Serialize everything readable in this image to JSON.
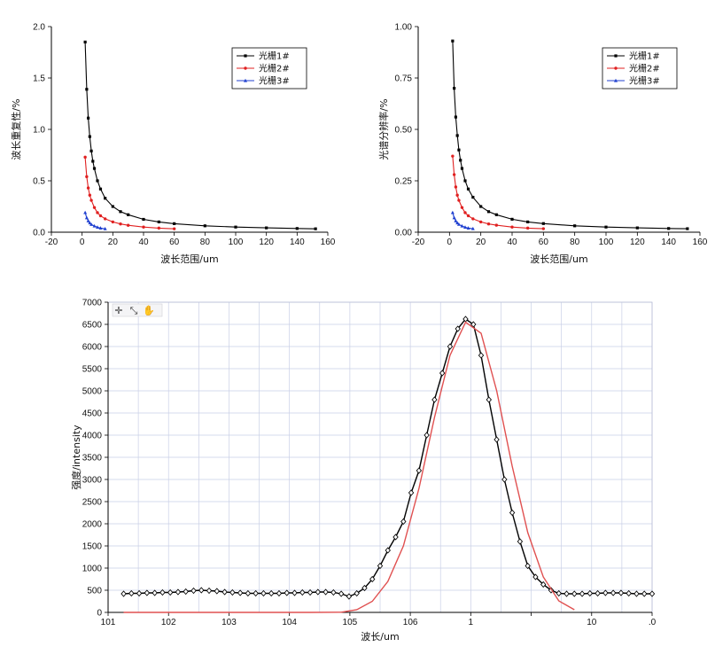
{
  "chart_data": [
    {
      "type": "line",
      "xlabel": "波长范围/um",
      "ylabel": "波长重复性/%",
      "xlim": [
        -20,
        160
      ],
      "ylim": [
        0,
        2.0
      ],
      "x_ticks": [
        "-20",
        "0",
        "20",
        "40",
        "60",
        "80",
        "100",
        "120",
        "140",
        "160"
      ],
      "y_ticks": [
        "0.0",
        "0.5",
        "1.0",
        "1.5",
        "2.0"
      ],
      "legend_placement": "top-right",
      "series": [
        {
          "name": "光栅1#",
          "color": "#000000",
          "marker": "square",
          "x": [
            2,
            3,
            4,
            5,
            6,
            7,
            8,
            10,
            12,
            15,
            20,
            25,
            30,
            40,
            50,
            60,
            80,
            100,
            120,
            140,
            152
          ],
          "y": [
            1.85,
            1.39,
            1.11,
            0.93,
            0.79,
            0.69,
            0.62,
            0.5,
            0.42,
            0.33,
            0.25,
            0.2,
            0.17,
            0.125,
            0.1,
            0.083,
            0.062,
            0.05,
            0.042,
            0.036,
            0.033
          ]
        },
        {
          "name": "光栅2#",
          "color": "#e02020",
          "marker": "circle",
          "x": [
            2,
            3,
            4,
            5,
            6,
            8,
            10,
            12,
            15,
            20,
            25,
            30,
            40,
            50,
            60
          ],
          "y": [
            0.73,
            0.54,
            0.43,
            0.36,
            0.31,
            0.24,
            0.19,
            0.16,
            0.13,
            0.1,
            0.08,
            0.067,
            0.05,
            0.04,
            0.033
          ]
        },
        {
          "name": "光栅3#",
          "color": "#2040d0",
          "marker": "triangle",
          "x": [
            2,
            3,
            4,
            5,
            6,
            8,
            10,
            12,
            15
          ],
          "y": [
            0.19,
            0.14,
            0.11,
            0.09,
            0.075,
            0.06,
            0.048,
            0.04,
            0.033
          ]
        }
      ]
    },
    {
      "type": "line",
      "xlabel": "波长范围/um",
      "ylabel": "光谱分辨率/%",
      "xlim": [
        -20,
        160
      ],
      "ylim": [
        0,
        1.0
      ],
      "x_ticks": [
        "-20",
        "0",
        "20",
        "40",
        "60",
        "80",
        "100",
        "120",
        "140",
        "160"
      ],
      "y_ticks": [
        "0.00",
        "0.25",
        "0.50",
        "0.75",
        "1.00"
      ],
      "legend_placement": "top-right",
      "series": [
        {
          "name": "光栅1#",
          "color": "#000000",
          "marker": "square",
          "x": [
            2,
            3,
            4,
            5,
            6,
            7,
            8,
            10,
            12,
            15,
            20,
            25,
            30,
            40,
            50,
            60,
            80,
            100,
            120,
            140,
            152
          ],
          "y": [
            0.93,
            0.7,
            0.56,
            0.47,
            0.4,
            0.35,
            0.31,
            0.25,
            0.21,
            0.17,
            0.125,
            0.1,
            0.085,
            0.063,
            0.05,
            0.042,
            0.031,
            0.025,
            0.021,
            0.018,
            0.017
          ]
        },
        {
          "name": "光栅2#",
          "color": "#e02020",
          "marker": "circle",
          "x": [
            2,
            3,
            4,
            5,
            6,
            8,
            10,
            12,
            15,
            20,
            25,
            30,
            40,
            50,
            60
          ],
          "y": [
            0.37,
            0.28,
            0.22,
            0.18,
            0.155,
            0.12,
            0.095,
            0.08,
            0.065,
            0.05,
            0.04,
            0.034,
            0.025,
            0.02,
            0.017
          ]
        },
        {
          "name": "光栅3#",
          "color": "#2040d0",
          "marker": "triangle",
          "x": [
            2,
            3,
            4,
            5,
            6,
            8,
            10,
            12,
            15
          ],
          "y": [
            0.095,
            0.07,
            0.055,
            0.045,
            0.038,
            0.03,
            0.024,
            0.02,
            0.017
          ]
        }
      ]
    },
    {
      "type": "line",
      "xlabel": "波长/um",
      "ylabel": "强度/intensity",
      "xlim": [
        101,
        108
      ],
      "ylim": [
        0,
        7000
      ],
      "x_ticks": [
        "101",
        "102",
        "103",
        "104",
        "105",
        "106",
        "1",
        "",
        "10",
        ".0"
      ],
      "y_ticks": [
        "0",
        "500",
        "1000",
        "1500",
        "2000",
        "2500",
        "3000",
        "3500",
        "4000",
        "4500",
        "5000",
        "5500",
        "6000",
        "6500",
        "7000"
      ],
      "grid": true,
      "series": [
        {
          "color": "#000000",
          "marker": "diamond",
          "x": [
            101.2,
            101.3,
            101.4,
            101.5,
            101.6,
            101.7,
            101.8,
            101.9,
            102.0,
            102.1,
            102.2,
            102.3,
            102.4,
            102.5,
            102.6,
            102.7,
            102.8,
            102.9,
            103.0,
            103.1,
            103.2,
            103.3,
            103.4,
            103.5,
            103.6,
            103.7,
            103.8,
            103.9,
            104.0,
            104.1,
            104.2,
            104.3,
            104.4,
            104.5,
            104.6,
            104.7,
            104.8,
            104.9,
            105.0,
            105.1,
            105.2,
            105.3,
            105.4,
            105.5,
            105.6,
            105.7,
            105.8,
            105.9,
            106.0,
            106.1,
            106.2,
            106.3,
            106.4,
            106.5,
            106.6,
            106.7,
            106.8,
            106.9,
            107.0,
            107.1,
            107.2,
            107.3,
            107.4,
            107.5,
            107.6,
            107.7,
            107.8,
            107.9,
            108.0
          ],
          "y": [
            420,
            430,
            430,
            440,
            440,
            450,
            450,
            460,
            470,
            490,
            500,
            490,
            480,
            460,
            450,
            440,
            430,
            430,
            430,
            430,
            430,
            440,
            440,
            450,
            450,
            460,
            460,
            450,
            420,
            360,
            430,
            550,
            750,
            1050,
            1400,
            1700,
            2050,
            2700,
            3200,
            4000,
            4800,
            5400,
            6000,
            6400,
            6620,
            6500,
            5800,
            4800,
            3900,
            3000,
            2250,
            1600,
            1050,
            800,
            630,
            500,
            430,
            420,
            420,
            420,
            430,
            430,
            440,
            440,
            440,
            430,
            420,
            420,
            420
          ]
        },
        {
          "color": "#e05050",
          "marker": "none",
          "x": [
            101.2,
            101.6,
            102.0,
            102.4,
            102.8,
            103.2,
            103.6,
            104.0,
            104.2,
            104.4,
            104.6,
            104.8,
            105.0,
            105.2,
            105.4,
            105.6,
            105.8,
            106.0,
            106.2,
            106.4,
            106.6,
            106.8,
            107.0
          ],
          "y": [
            0,
            0,
            0,
            0,
            0,
            0,
            0,
            5,
            60,
            250,
            700,
            1500,
            2800,
            4400,
            5800,
            6550,
            6300,
            5000,
            3300,
            1800,
            800,
            260,
            60
          ]
        }
      ]
    }
  ],
  "toolbar_icons": [
    "pointer-icon",
    "zoom-icon",
    "pan-icon"
  ]
}
